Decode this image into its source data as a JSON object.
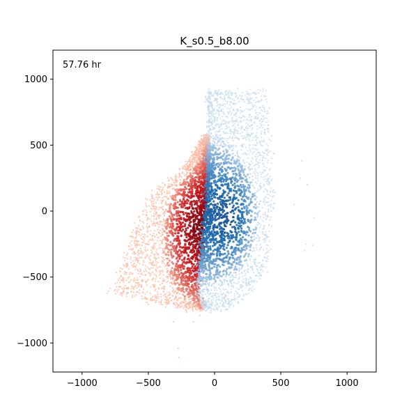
{
  "chart_data": {
    "type": "scatter",
    "title": "K_s0.5_b8.00",
    "annotation": "57.76 hr",
    "xlim": [
      -1220,
      1220
    ],
    "ylim": [
      -1220,
      1220
    ],
    "x_ticks": [
      -1000,
      -500,
      0,
      500,
      1000
    ],
    "x_tick_labels": [
      "−1000",
      "−500",
      "0",
      "500",
      "1000"
    ],
    "y_ticks": [
      -1000,
      -500,
      0,
      500,
      1000
    ],
    "y_tick_labels": [
      "−1000",
      "−500",
      "0",
      "500",
      "1000"
    ],
    "grid": false,
    "series": [
      {
        "colormap": "Reds",
        "color_dark": "#67000d",
        "color_mid": "#cb181d",
        "color_light": "#fcbba1",
        "region": {
          "top": 570,
          "bottom": -745,
          "boundary_edge": [
            [
              560,
              -50
            ],
            [
              300,
              -55
            ],
            [
              0,
              -70
            ],
            [
              -300,
              -100
            ],
            [
              -600,
              -130
            ],
            [
              -745,
              -80
            ]
          ],
          "outer_edge": [
            [
              560,
              -80
            ],
            [
              300,
              -260
            ],
            [
              150,
              -480
            ],
            [
              0,
              -560
            ],
            [
              -200,
              -640
            ],
            [
              -400,
              -700
            ],
            [
              -550,
              -760
            ],
            [
              -620,
              -820
            ],
            [
              -745,
              -230
            ]
          ]
        },
        "dense_core": [
          -120,
          -120
        ],
        "sparse_outliers": [
          [
            -1110,
            -270
          ],
          [
            -1040,
            -275
          ],
          [
            -840,
            -160
          ],
          [
            -790,
            -110
          ],
          [
            -770,
            -30
          ],
          [
            -840,
            -310
          ]
        ]
      },
      {
        "colormap": "Blues",
        "color_dark": "#08306b",
        "color_mid": "#2171b5",
        "color_light": "#c6dbef",
        "region": {
          "top": 910,
          "bottom": -745,
          "boundary_edge": [
            [
              570,
              -50
            ],
            [
              300,
              -55
            ],
            [
              0,
              -70
            ],
            [
              -300,
              -100
            ],
            [
              -600,
              -130
            ],
            [
              -745,
              -80
            ]
          ],
          "outer_edge": [
            [
              910,
              380
            ],
            [
              800,
              400
            ],
            [
              600,
              420
            ],
            [
              400,
              440
            ],
            [
              200,
              450
            ],
            [
              0,
              440
            ],
            [
              -200,
              420
            ],
            [
              -400,
              400
            ],
            [
              -600,
              300
            ],
            [
              -745,
              100
            ]
          ]
        },
        "dense_core": [
          120,
          -50
        ],
        "sparse_outliers": [
          [
            -50,
            750
          ],
          [
            200,
            700
          ],
          [
            -260,
            740
          ],
          [
            -300,
            680
          ],
          [
            380,
            660
          ],
          [
            50,
            600
          ],
          [
            250,
            645
          ],
          [
            -250,
            690
          ]
        ]
      }
    ]
  }
}
